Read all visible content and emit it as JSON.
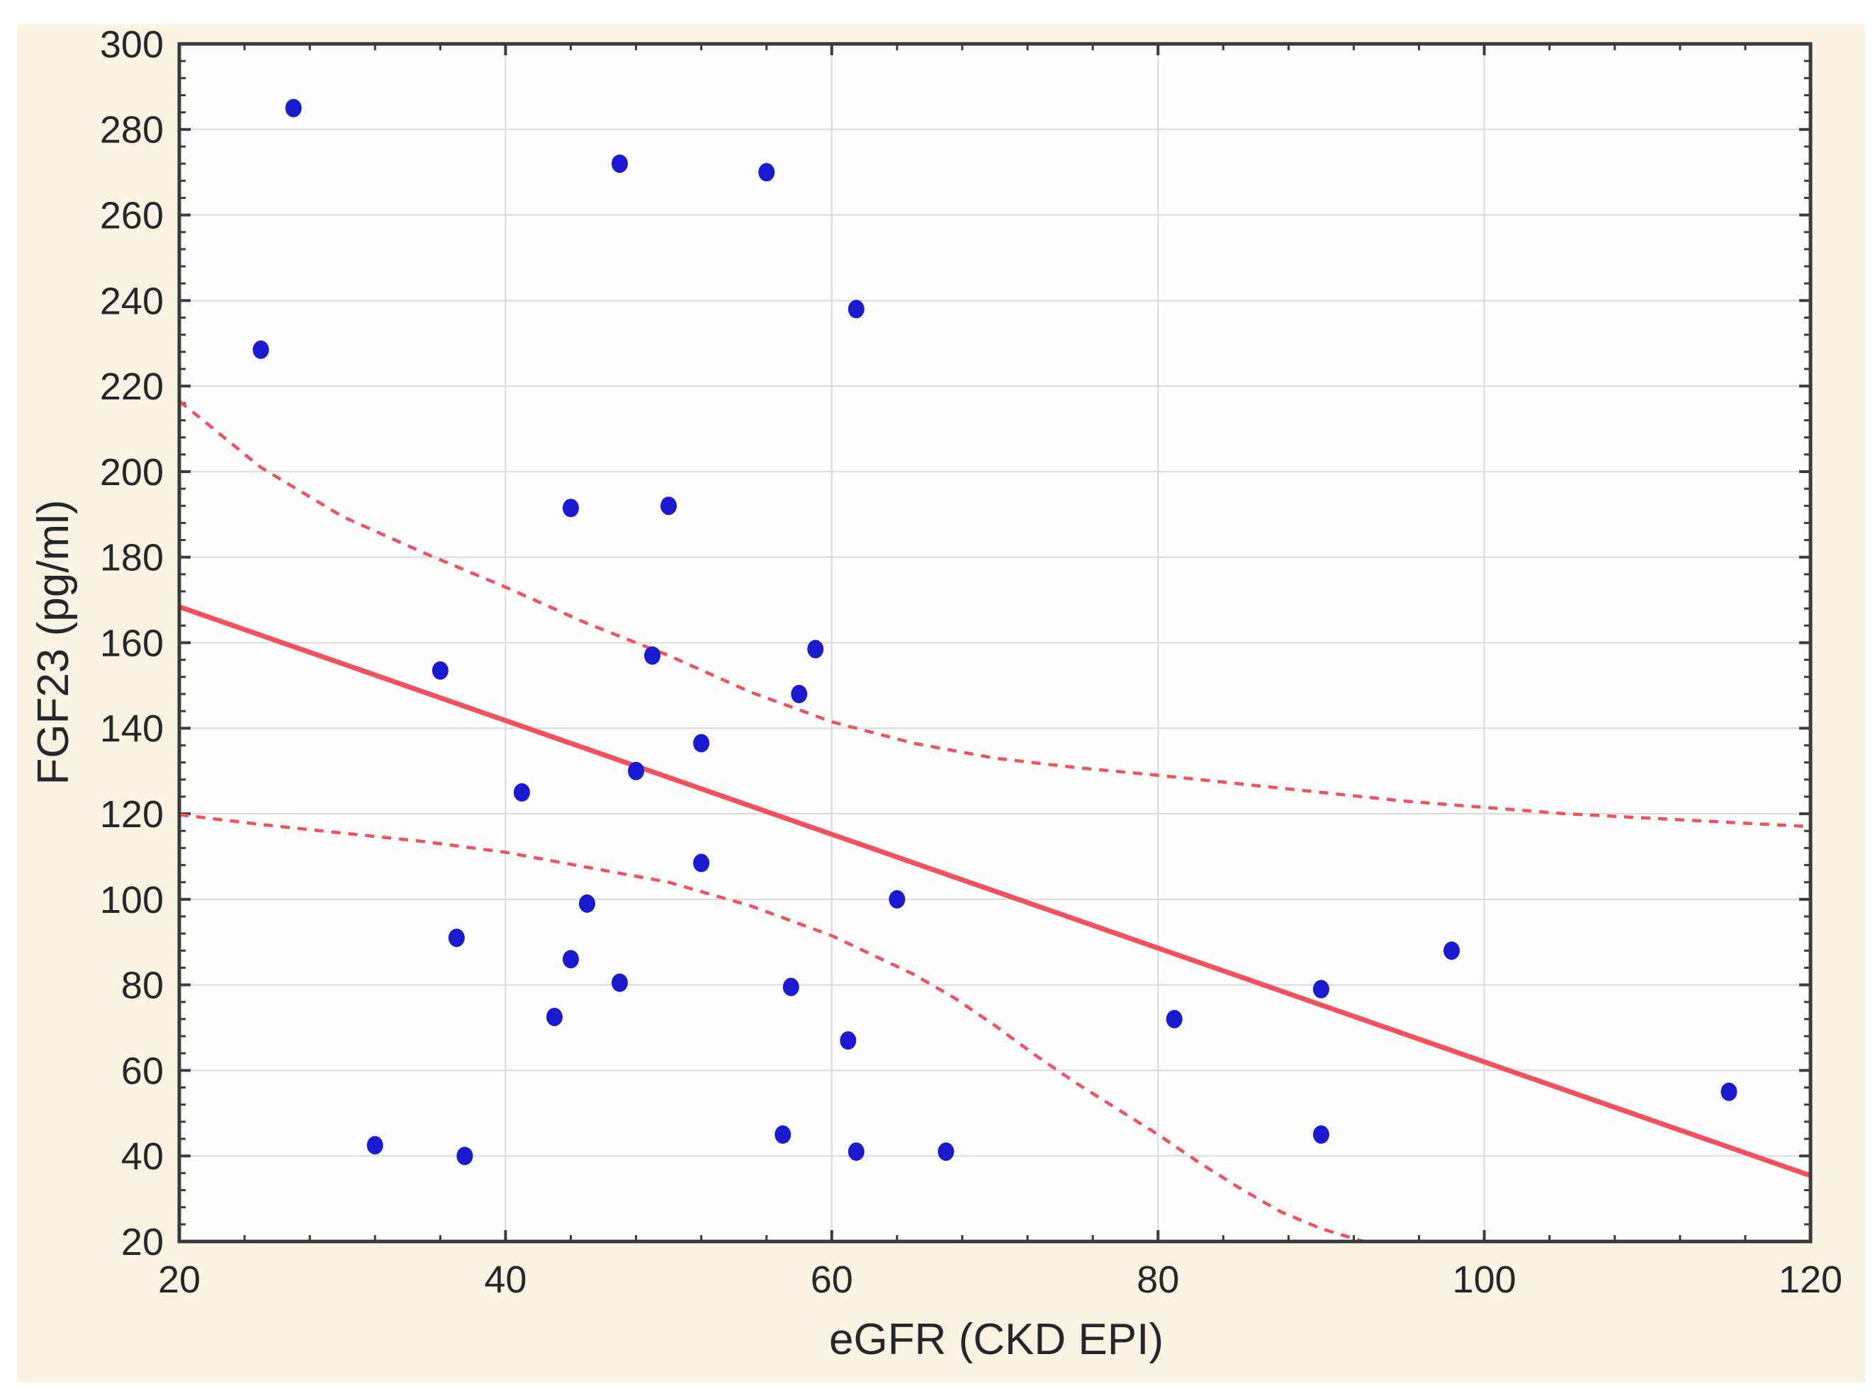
{
  "page": {
    "background": "#ffffff"
  },
  "figure": {
    "panel_color": "#faf3e1"
  },
  "chart_data": {
    "type": "scatter",
    "title": "",
    "xlabel": "eGFR (CKD EPI)",
    "ylabel": "FGF23 (pg/ml)",
    "xlim": [
      20,
      120
    ],
    "ylim": [
      20,
      300
    ],
    "x_ticks": [
      20,
      40,
      60,
      80,
      100,
      120
    ],
    "y_ticks": [
      20,
      40,
      60,
      80,
      100,
      120,
      140,
      160,
      180,
      200,
      220,
      240,
      260,
      280,
      300
    ],
    "minor_tick_step": 4,
    "grid": true,
    "legend_position": "none",
    "points": [
      [
        27,
        285
      ],
      [
        25,
        228.5
      ],
      [
        47,
        272
      ],
      [
        56,
        270
      ],
      [
        61.5,
        238
      ],
      [
        44,
        191.5
      ],
      [
        50,
        192
      ],
      [
        36,
        153.5
      ],
      [
        49,
        157
      ],
      [
        59,
        158.5
      ],
      [
        58,
        148
      ],
      [
        52,
        136.5
      ],
      [
        48,
        130
      ],
      [
        41,
        125
      ],
      [
        52,
        108.5
      ],
      [
        45,
        99
      ],
      [
        37,
        91
      ],
      [
        44,
        86
      ],
      [
        47,
        80.5
      ],
      [
        43,
        72.5
      ],
      [
        64,
        100
      ],
      [
        57.5,
        79.5
      ],
      [
        61,
        67
      ],
      [
        81,
        72
      ],
      [
        90,
        79
      ],
      [
        98,
        88
      ],
      [
        90,
        45
      ],
      [
        115,
        55
      ],
      [
        32,
        42.5
      ],
      [
        37.5,
        40
      ],
      [
        57,
        45
      ],
      [
        61.5,
        41
      ],
      [
        67,
        41
      ]
    ],
    "regression_line": {
      "x": [
        20,
        120
      ],
      "y": [
        168.4,
        35.4
      ]
    },
    "ci_upper": [
      [
        20,
        216.5
      ],
      [
        25,
        201
      ],
      [
        30,
        189.5
      ],
      [
        35,
        181
      ],
      [
        40,
        173
      ],
      [
        45,
        164.5
      ],
      [
        50,
        157
      ],
      [
        55,
        148.5
      ],
      [
        60,
        141.5
      ],
      [
        65,
        136.5
      ],
      [
        70,
        133
      ],
      [
        75,
        130.8
      ],
      [
        80,
        129
      ],
      [
        85,
        127
      ],
      [
        90,
        125
      ],
      [
        95,
        123
      ],
      [
        100,
        121.5
      ],
      [
        105,
        120
      ],
      [
        110,
        119
      ],
      [
        115,
        118
      ],
      [
        120,
        117
      ]
    ],
    "ci_lower": [
      [
        20,
        119.8
      ],
      [
        25,
        117.5
      ],
      [
        30,
        115.5
      ],
      [
        35,
        113.5
      ],
      [
        40,
        111
      ],
      [
        45,
        107.5
      ],
      [
        50,
        104
      ],
      [
        55,
        98.5
      ],
      [
        57.5,
        95
      ],
      [
        60,
        91.5
      ],
      [
        62.5,
        87
      ],
      [
        65,
        82.5
      ],
      [
        67.5,
        77
      ],
      [
        70,
        70.5
      ],
      [
        72.5,
        63.5
      ],
      [
        75,
        57
      ],
      [
        77.5,
        51
      ],
      [
        80,
        45
      ],
      [
        82.5,
        38.5
      ],
      [
        85,
        32.5
      ],
      [
        87.5,
        27
      ],
      [
        90,
        23
      ],
      [
        92.6,
        20
      ]
    ],
    "colors": {
      "point": "#1a1bd0",
      "trend": "#f4505b",
      "grid": "#d9d9d9",
      "frame": "#3b3b3b",
      "text": "#26262b",
      "plot_bg": "#fefefe"
    }
  }
}
